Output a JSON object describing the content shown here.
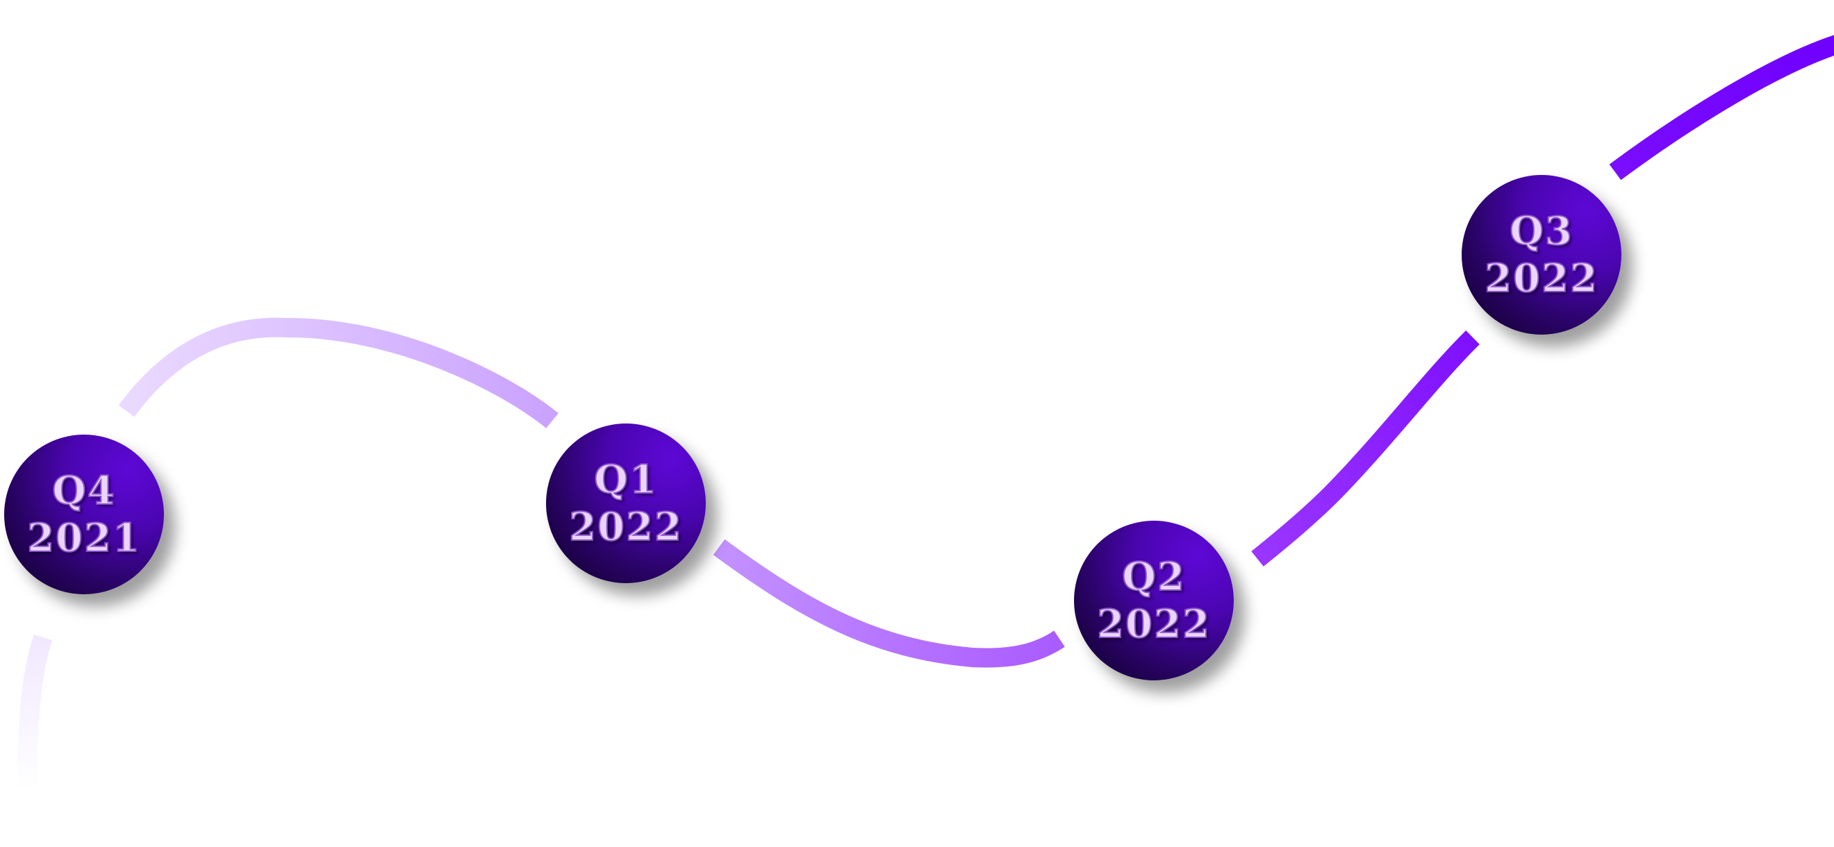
{
  "timeline": {
    "milestones": [
      {
        "quarter": "Q4",
        "year": "2021"
      },
      {
        "quarter": "Q1",
        "year": "2022"
      },
      {
        "quarter": "Q2",
        "year": "2022"
      },
      {
        "quarter": "Q3",
        "year": "2022"
      }
    ]
  },
  "colors": {
    "circle_dark": "#0a0020",
    "circle_light": "#5d08d6",
    "label_fill": "#ead5ff",
    "label_stroke": "#8a52c8",
    "curve_start": "#f3ebff",
    "curve_mid": "#b56cff",
    "curve_end": "#7a0cff"
  }
}
